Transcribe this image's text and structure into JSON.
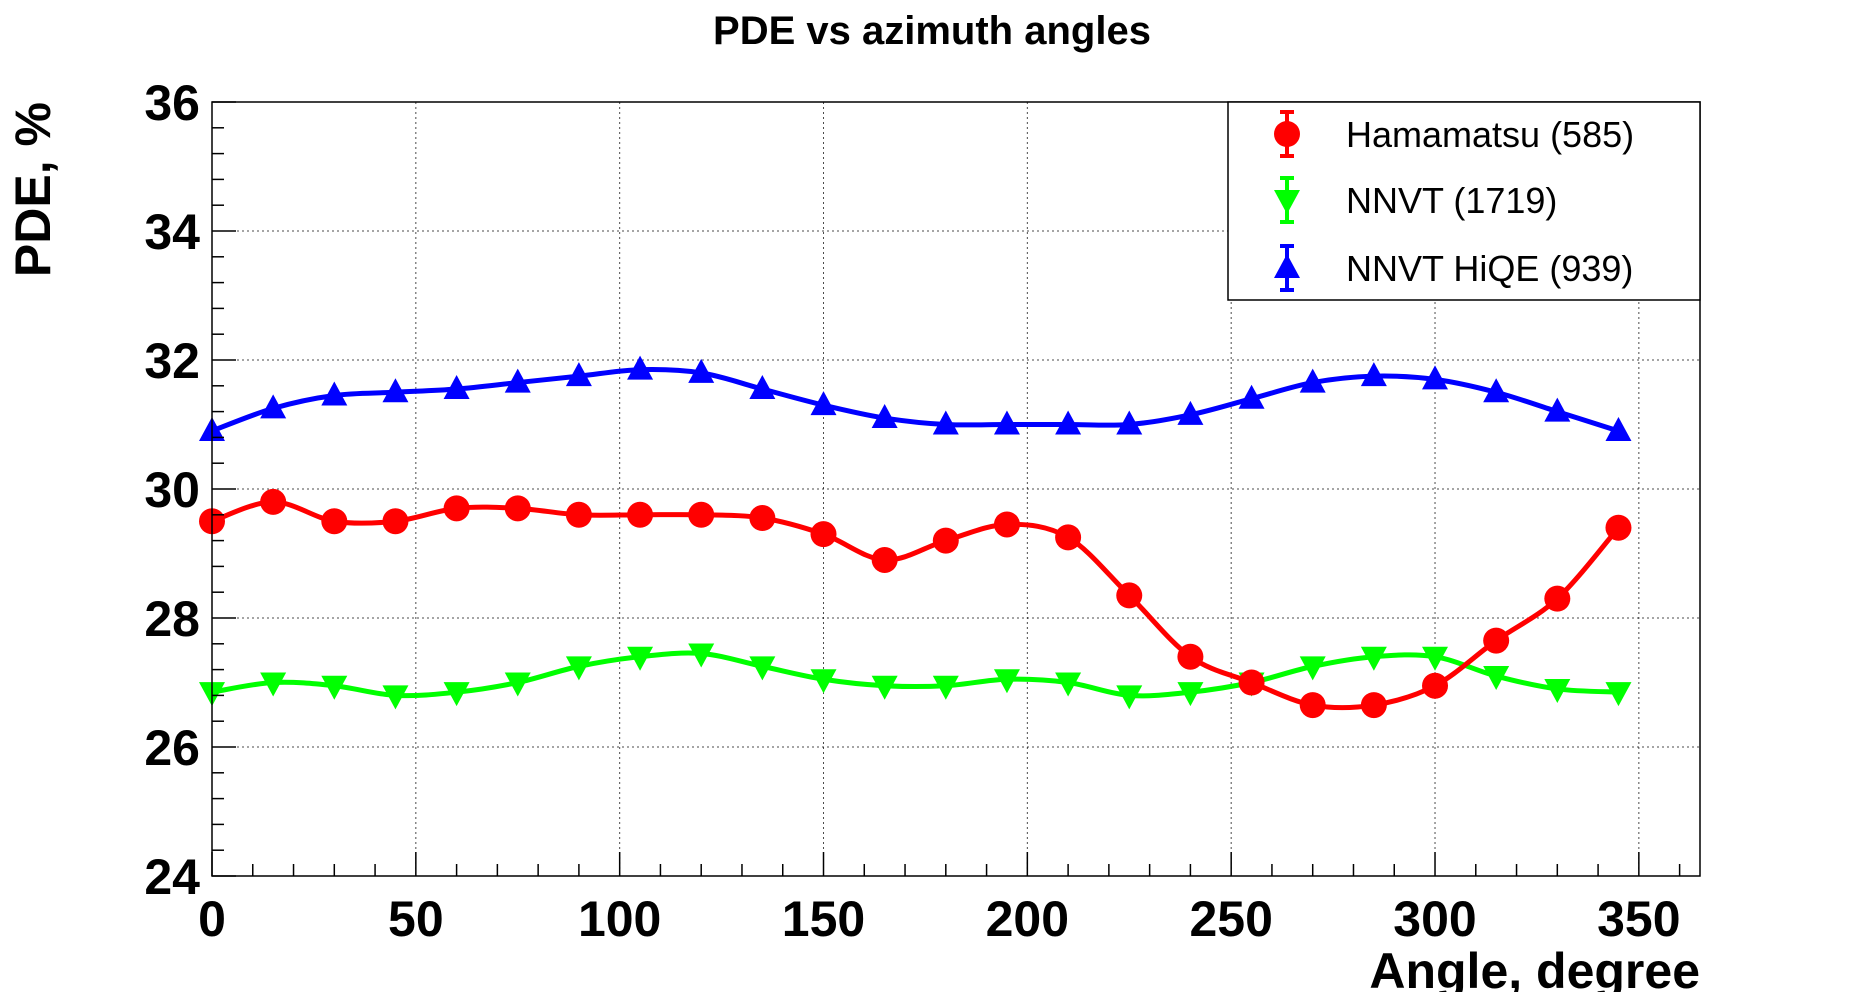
{
  "chart_data": {
    "type": "line",
    "title": "PDE vs azimuth angles",
    "xlabel": "Angle, degree",
    "ylabel": "PDE, %",
    "xlim": [
      0,
      365
    ],
    "ylim": [
      24,
      36
    ],
    "xticks": [
      0,
      50,
      100,
      150,
      200,
      250,
      300,
      350
    ],
    "yticks": [
      24,
      26,
      28,
      30,
      32,
      34,
      36
    ],
    "grid": true,
    "legend_position": "top-right",
    "x": [
      0,
      15,
      30,
      45,
      60,
      75,
      90,
      105,
      120,
      135,
      150,
      165,
      180,
      195,
      210,
      225,
      240,
      255,
      270,
      285,
      300,
      315,
      330,
      345
    ],
    "series": [
      {
        "name": "Hamamatsu (585)",
        "color": "#ff0000",
        "marker": "circle",
        "values": [
          29.5,
          29.8,
          29.5,
          29.5,
          29.7,
          29.7,
          29.6,
          29.6,
          29.6,
          29.55,
          29.3,
          28.9,
          29.2,
          29.45,
          29.25,
          28.35,
          27.4,
          27.0,
          26.65,
          26.65,
          26.95,
          27.65,
          28.3,
          29.4
        ]
      },
      {
        "name": "NNVT (1719)",
        "color": "#00ff00",
        "marker": "triangle-down",
        "values": [
          26.85,
          27.0,
          26.95,
          26.8,
          26.85,
          27.0,
          27.25,
          27.4,
          27.45,
          27.25,
          27.05,
          26.95,
          26.95,
          27.05,
          27.0,
          26.8,
          26.85,
          27.0,
          27.25,
          27.4,
          27.4,
          27.1,
          26.9,
          26.85
        ]
      },
      {
        "name": "NNVT HiQE (939)",
        "color": "#0000ff",
        "marker": "triangle-up",
        "values": [
          30.9,
          31.25,
          31.45,
          31.5,
          31.55,
          31.65,
          31.75,
          31.85,
          31.8,
          31.55,
          31.3,
          31.1,
          31.0,
          31.0,
          31.0,
          31.0,
          31.15,
          31.4,
          31.65,
          31.75,
          31.7,
          31.5,
          31.2,
          30.9
        ]
      }
    ]
  }
}
